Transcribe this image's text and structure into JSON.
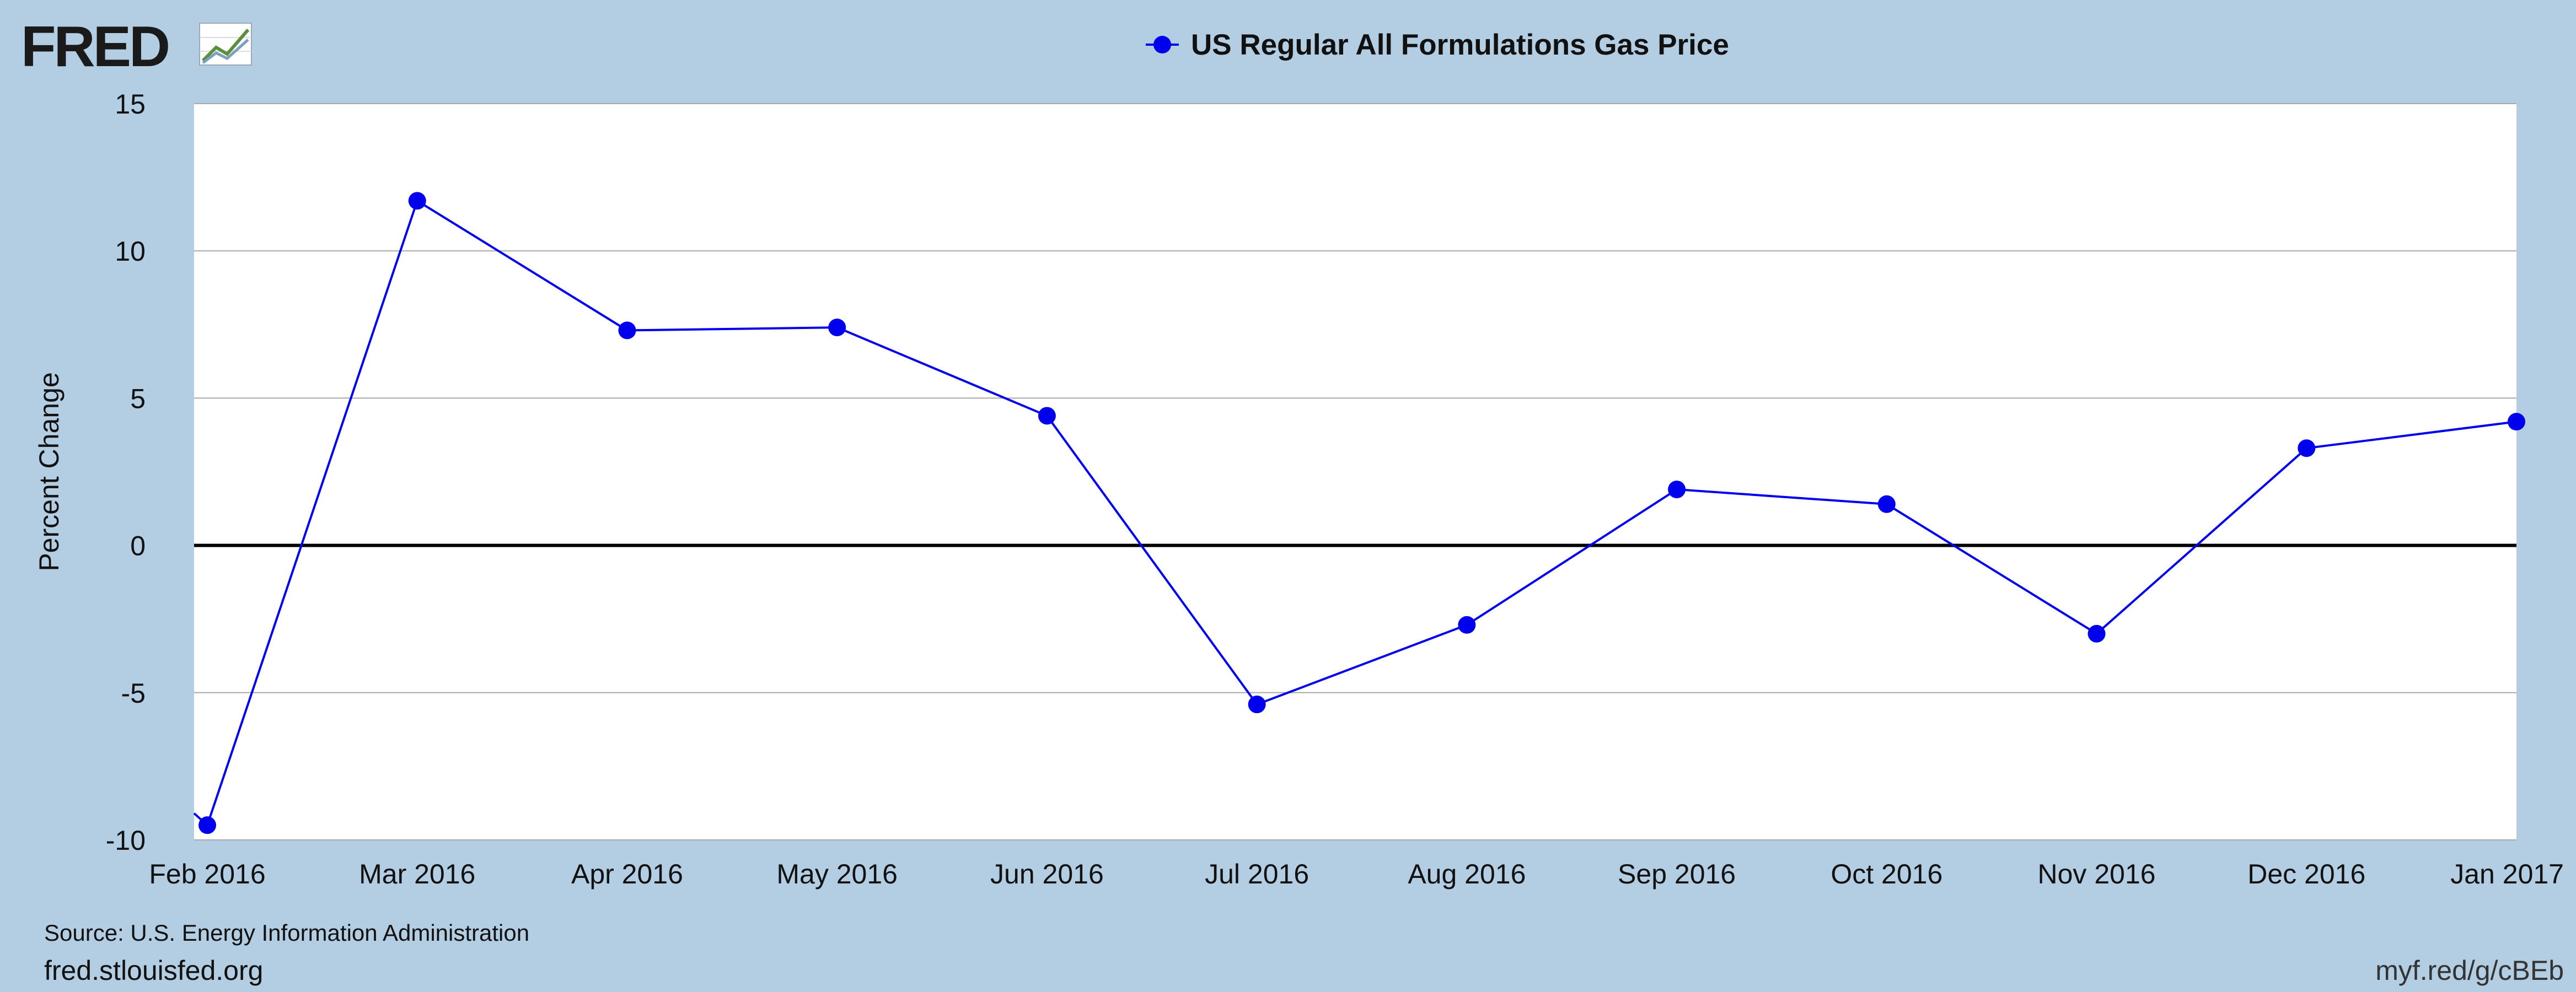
{
  "branding": {
    "logo_text": "FRED",
    "logo_icon": "chart-trend-icon",
    "site_url": "fred.stlouisfed.org",
    "short_link": "myf.red/g/cBEb"
  },
  "source_text": "Source: U.S. Energy Information Administration",
  "colors": {
    "background": "#b3cde3",
    "plot_background": "#ffffff",
    "series": "#0000ee",
    "zero_line": "#000000",
    "grid": "#aaaaaa"
  },
  "chart_data": {
    "type": "line",
    "legend_position": "top-center",
    "grid": true,
    "ylabel": "Percent Change",
    "xlabel": "",
    "ylim": [
      -10,
      15
    ],
    "yticks": [
      15,
      10,
      5,
      0,
      -5,
      -10
    ],
    "categories": [
      "Feb 2016",
      "Mar 2016",
      "Apr 2016",
      "May 2016",
      "Jun 2016",
      "Jul 2016",
      "Aug 2016",
      "Sep 2016",
      "Oct 2016",
      "Nov 2016",
      "Dec 2016",
      "Jan 2017"
    ],
    "series": [
      {
        "name": "US Regular All Formulations Gas Price",
        "values": [
          -9.5,
          11.7,
          7.3,
          7.4,
          4.4,
          -5.4,
          -2.7,
          1.9,
          1.4,
          -3.0,
          3.3,
          4.2
        ],
        "prior_value": -9.1
      }
    ]
  }
}
